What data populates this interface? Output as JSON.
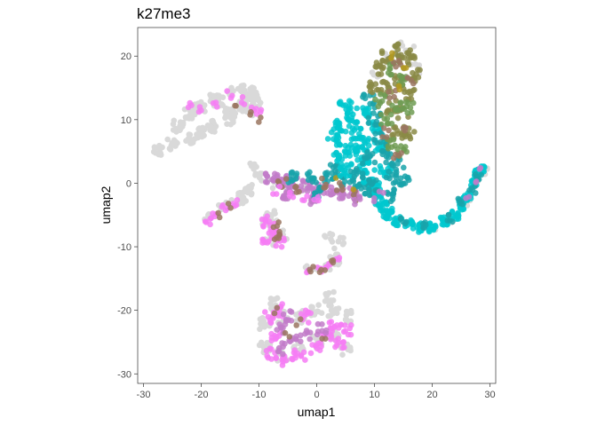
{
  "chart_data": {
    "type": "scatter",
    "title": "k27me3",
    "xlabel": "umap1",
    "ylabel": "umap2",
    "xlim": [
      -31,
      31
    ],
    "ylim": [
      -31.5,
      24.5
    ],
    "xticks": [
      -30,
      -20,
      -10,
      0,
      10,
      20,
      30
    ],
    "yticks": [
      -30,
      -20,
      -10,
      0,
      10,
      20
    ],
    "grid": false,
    "legend": "none",
    "colors": {
      "background": "#d9d9d9",
      "magenta": "#f67df4",
      "mauve": "#c27bc9",
      "brown": "#9a7560",
      "cyan": "#00c8cf",
      "teal": "#19a3aa",
      "olive": "#8a8a45",
      "green": "#6f9b52",
      "gold": "#b59a20"
    },
    "clusters": [
      {
        "name": "upper-left-arm",
        "layer": "bg",
        "pts": [
          [
            -27.5,
            5
          ],
          [
            -22,
            7
          ],
          [
            -18,
            9
          ],
          [
            -15,
            11
          ],
          [
            -13,
            12.5
          ],
          [
            -12,
            13.5
          ],
          [
            -10.5,
            13
          ],
          [
            -12,
            11.5
          ],
          [
            -15,
            10
          ],
          [
            -20,
            8
          ],
          [
            -25,
            6
          ],
          [
            -24,
            9
          ],
          [
            -22,
            11
          ],
          [
            -20,
            12
          ],
          [
            -17,
            13
          ]
        ],
        "spread": 0.9,
        "n": 14
      },
      {
        "name": "upper-left-thin",
        "layer": "bg",
        "pts": [
          [
            -21,
            12
          ],
          [
            -18,
            13.5
          ],
          [
            -15,
            14.5
          ],
          [
            -13,
            15
          ],
          [
            -11,
            14.5
          ]
        ],
        "spread": 0.6,
        "n": 10
      },
      {
        "name": "upper-left-magenta",
        "layer": "fg",
        "color": "magenta",
        "pts": [
          [
            -22,
            12.5
          ],
          [
            -20,
            11.5
          ],
          [
            -17.5,
            12.5
          ],
          [
            -15,
            14
          ],
          [
            -13,
            13
          ],
          [
            -11,
            12
          ],
          [
            -10,
            11
          ]
        ],
        "spread": 0.6,
        "n": 3
      },
      {
        "name": "upper-left-brown",
        "layer": "fg",
        "color": "brown",
        "pts": [
          [
            -14,
            12
          ],
          [
            -11.5,
            11
          ],
          [
            -10,
            10
          ]
        ],
        "spread": 0.4,
        "n": 2
      },
      {
        "name": "center-bg",
        "layer": "bg",
        "pts": [
          [
            -11,
            3
          ],
          [
            -10,
            1
          ],
          [
            -8,
            0
          ],
          [
            -5,
            0
          ],
          [
            -2,
            -0.5
          ],
          [
            1,
            -1
          ],
          [
            -12,
            -1
          ],
          [
            -13,
            -3
          ],
          [
            -8,
            -5
          ],
          [
            -6,
            -8
          ],
          [
            2,
            -8.5
          ],
          [
            4,
            -9
          ],
          [
            3,
            -11
          ]
        ],
        "spread": 0.8,
        "n": 6
      },
      {
        "name": "center-arm-mix",
        "layer": "fg",
        "color": "mauve",
        "pts": [
          [
            -8,
            1
          ],
          [
            -6,
            0.5
          ],
          [
            -4,
            0
          ],
          [
            -2,
            -0.5
          ],
          [
            0,
            -1
          ],
          [
            2,
            -1
          ],
          [
            4,
            -1.5
          ],
          [
            6,
            -1.5
          ],
          [
            -5,
            -2
          ],
          [
            -1,
            -2.5
          ]
        ],
        "spread": 0.9,
        "n": 12
      },
      {
        "name": "center-arm-teal",
        "layer": "fg",
        "color": "teal",
        "pts": [
          [
            -4,
            1
          ],
          [
            -1,
            1
          ],
          [
            2,
            1
          ],
          [
            5,
            0.5
          ],
          [
            7,
            0
          ],
          [
            9,
            -1
          ],
          [
            3,
            2
          ],
          [
            0,
            -1.5
          ]
        ],
        "spread": 0.9,
        "n": 10
      },
      {
        "name": "center-arm-brown",
        "layer": "fg",
        "color": "brown",
        "pts": [
          [
            -6,
            0
          ],
          [
            -3,
            -1
          ],
          [
            1,
            0
          ],
          [
            4,
            -0.5
          ],
          [
            7,
            -2
          ]
        ],
        "spread": 0.8,
        "n": 4
      },
      {
        "name": "center-arm-magenta",
        "layer": "fg",
        "color": "magenta",
        "pts": [
          [
            -7,
            -1
          ],
          [
            -4,
            -2
          ],
          [
            -2,
            -2.5
          ],
          [
            0,
            -2.8
          ]
        ],
        "spread": 0.7,
        "n": 3
      },
      {
        "name": "center-arm-gold",
        "layer": "fg",
        "color": "gold",
        "pts": [
          [
            6,
            -1
          ],
          [
            3,
            1
          ]
        ],
        "spread": 0.4,
        "n": 1
      },
      {
        "name": "left-small-bg",
        "layer": "bg",
        "pts": [
          [
            -19,
            -5
          ],
          [
            -17,
            -4
          ],
          [
            -15,
            -3
          ],
          [
            -13,
            -2
          ],
          [
            -12,
            -1
          ]
        ],
        "spread": 0.7,
        "n": 5
      },
      {
        "name": "left-small-magenta",
        "layer": "fg",
        "color": "magenta",
        "pts": [
          [
            -19,
            -6
          ],
          [
            -18,
            -5
          ],
          [
            -16,
            -4
          ],
          [
            -14,
            -3
          ]
        ],
        "spread": 0.6,
        "n": 4
      },
      {
        "name": "left-small-brown",
        "layer": "fg",
        "color": "brown",
        "pts": [
          [
            -17,
            -5
          ],
          [
            -15,
            -3.5
          ]
        ],
        "spread": 0.4,
        "n": 2
      },
      {
        "name": "mid-left-blob-bg",
        "layer": "bg",
        "pts": [
          [
            -9,
            -6
          ],
          [
            -7,
            -6
          ],
          [
            -6,
            -8
          ],
          [
            -8,
            -9
          ]
        ],
        "spread": 1,
        "n": 5
      },
      {
        "name": "mid-left-blob-magenta",
        "layer": "fg",
        "color": "magenta",
        "pts": [
          [
            -9,
            -6
          ],
          [
            -8,
            -7
          ],
          [
            -7,
            -8
          ],
          [
            -8.5,
            -9
          ],
          [
            -6.5,
            -9.5
          ]
        ],
        "spread": 0.9,
        "n": 7
      },
      {
        "name": "mid-left-blob-brown",
        "layer": "fg",
        "color": "brown",
        "pts": [
          [
            -7,
            -6.5
          ],
          [
            -6.5,
            -8
          ],
          [
            -7,
            -9
          ]
        ],
        "spread": 0.5,
        "n": 3
      },
      {
        "name": "mid-small-bg",
        "layer": "bg",
        "pts": [
          [
            -2,
            -13.5
          ],
          [
            0,
            -13
          ],
          [
            2,
            -13
          ],
          [
            3.5,
            -12.5
          ]
        ],
        "spread": 0.6,
        "n": 4
      },
      {
        "name": "mid-small-magenta",
        "layer": "fg",
        "color": "magenta",
        "pts": [
          [
            -1.5,
            -14
          ],
          [
            0.5,
            -13.5
          ],
          [
            2,
            -13
          ],
          [
            3.5,
            -12
          ]
        ],
        "spread": 0.5,
        "n": 4
      },
      {
        "name": "mid-small-brown",
        "layer": "fg",
        "color": "brown",
        "pts": [
          [
            -1,
            -13.5
          ],
          [
            1,
            -14
          ],
          [
            3,
            -12.5
          ]
        ],
        "spread": 0.5,
        "n": 3
      },
      {
        "name": "bottom-bg",
        "layer": "bg",
        "pts": [
          [
            -9,
            -22
          ],
          [
            -6,
            -21
          ],
          [
            -3,
            -21
          ],
          [
            0,
            -20
          ],
          [
            3,
            -20
          ],
          [
            5,
            -21
          ],
          [
            -9,
            -26
          ],
          [
            -6,
            -27
          ],
          [
            -3,
            -26
          ],
          [
            0,
            -25
          ],
          [
            3,
            -24
          ],
          [
            5,
            -26
          ],
          [
            -7,
            -19
          ],
          [
            2,
            -18
          ]
        ],
        "spread": 1,
        "n": 10
      },
      {
        "name": "bottom-magenta",
        "layer": "fg",
        "color": "magenta",
        "pts": [
          [
            -8,
            -21
          ],
          [
            -7,
            -24
          ],
          [
            -8,
            -27
          ],
          [
            -5,
            -28
          ],
          [
            -3,
            -27
          ],
          [
            0,
            -26
          ],
          [
            2,
            -24
          ],
          [
            3,
            -22
          ],
          [
            4,
            -25
          ],
          [
            5,
            -23
          ],
          [
            -2,
            -21
          ],
          [
            -6,
            -20
          ]
        ],
        "spread": 1,
        "n": 9
      },
      {
        "name": "bottom-mauve",
        "layer": "fg",
        "color": "mauve",
        "pts": [
          [
            -6,
            -23
          ],
          [
            -4,
            -25
          ],
          [
            -2,
            -24
          ],
          [
            -6,
            -26
          ],
          [
            1,
            -23
          ],
          [
            -5,
            -21
          ]
        ],
        "spread": 0.9,
        "n": 7
      },
      {
        "name": "bottom-brown",
        "layer": "fg",
        "color": "brown",
        "pts": [
          [
            -7,
            -20
          ],
          [
            -5,
            -24
          ],
          [
            -3,
            -22
          ],
          [
            1,
            -25
          ]
        ],
        "spread": 0.6,
        "n": 2
      },
      {
        "name": "right-tower-bg",
        "layer": "bg",
        "pts": [
          [
            10,
            17
          ],
          [
            12,
            20
          ],
          [
            14,
            21.5
          ],
          [
            16,
            21
          ],
          [
            17,
            18
          ]
        ],
        "spread": 0.9,
        "n": 5
      },
      {
        "name": "right-tower-cyan",
        "layer": "fg",
        "color": "cyan",
        "pts": [
          [
            5,
            12
          ],
          [
            6,
            10
          ],
          [
            7,
            8
          ],
          [
            8,
            6
          ],
          [
            8,
            3
          ],
          [
            9,
            1
          ],
          [
            10,
            -1
          ],
          [
            11,
            -3
          ],
          [
            12,
            -4
          ],
          [
            8,
            11
          ],
          [
            10,
            9
          ],
          [
            11,
            6
          ],
          [
            12,
            2
          ],
          [
            6,
            5
          ],
          [
            5,
            2
          ],
          [
            4,
            4
          ],
          [
            3,
            7
          ],
          [
            4,
            9
          ]
        ],
        "spread": 1.1,
        "n": 14
      },
      {
        "name": "right-tower-teal",
        "layer": "fg",
        "color": "teal",
        "pts": [
          [
            9,
            13
          ],
          [
            10,
            10
          ],
          [
            11,
            7
          ],
          [
            12,
            4
          ],
          [
            13,
            1
          ],
          [
            13,
            -2
          ],
          [
            9,
            4
          ],
          [
            7,
            2
          ],
          [
            10,
            0
          ],
          [
            14,
            3
          ],
          [
            15,
            0
          ]
        ],
        "spread": 1.1,
        "n": 10
      },
      {
        "name": "right-tower-olive",
        "layer": "fg",
        "color": "olive",
        "pts": [
          [
            11,
            18
          ],
          [
            12,
            20
          ],
          [
            14,
            21
          ],
          [
            16,
            20
          ],
          [
            17,
            17
          ],
          [
            16,
            14
          ],
          [
            15,
            11
          ],
          [
            14,
            8
          ],
          [
            13,
            12
          ],
          [
            12,
            15
          ],
          [
            14,
            16
          ],
          [
            15,
            19
          ],
          [
            10,
            15
          ],
          [
            16,
            8
          ]
        ],
        "spread": 1,
        "n": 10
      },
      {
        "name": "right-tower-green",
        "layer": "fg",
        "color": "green",
        "pts": [
          [
            13,
            18
          ],
          [
            15,
            16
          ],
          [
            14,
            12
          ],
          [
            12,
            10
          ],
          [
            16,
            12
          ],
          [
            13,
            6
          ],
          [
            11,
            13
          ],
          [
            15,
            5
          ]
        ],
        "spread": 1,
        "n": 8
      },
      {
        "name": "right-tower-brown",
        "layer": "fg",
        "color": "brown",
        "pts": [
          [
            14,
            19
          ],
          [
            16,
            16
          ],
          [
            13,
            14
          ],
          [
            15,
            9
          ],
          [
            12,
            8
          ],
          [
            14,
            4
          ]
        ],
        "spread": 0.8,
        "n": 4
      },
      {
        "name": "right-tower-mauve",
        "layer": "fg",
        "color": "mauve",
        "pts": [
          [
            8,
            -2
          ],
          [
            10,
            -3
          ],
          [
            11,
            -1
          ],
          [
            7,
            -3
          ]
        ],
        "spread": 0.7,
        "n": 2
      },
      {
        "name": "right-tower-gold",
        "layer": "fg",
        "color": "gold",
        "pts": [
          [
            13,
            20
          ],
          [
            15,
            18
          ],
          [
            14,
            15
          ]
        ],
        "spread": 0.5,
        "n": 2
      },
      {
        "name": "right-arm-bg",
        "layer": "bg",
        "pts": [
          [
            20,
            -7
          ],
          [
            23,
            -6
          ],
          [
            26,
            -3
          ],
          [
            28,
            0
          ],
          [
            29,
            2
          ]
        ],
        "spread": 0.6,
        "n": 4
      },
      {
        "name": "right-arm-cyan",
        "layer": "fg",
        "color": "cyan",
        "pts": [
          [
            12,
            -5
          ],
          [
            14,
            -6
          ],
          [
            16,
            -6.5
          ],
          [
            18,
            -7
          ],
          [
            20,
            -7
          ],
          [
            22,
            -6
          ],
          [
            24,
            -5
          ],
          [
            25,
            -3.5
          ],
          [
            26,
            -2
          ],
          [
            27,
            0
          ],
          [
            28,
            1.5
          ],
          [
            28.5,
            2
          ]
        ],
        "spread": 0.7,
        "n": 12
      },
      {
        "name": "right-arm-teal",
        "layer": "fg",
        "color": "teal",
        "pts": [
          [
            15,
            -6
          ],
          [
            19,
            -6.5
          ],
          [
            23,
            -5.5
          ],
          [
            25,
            -3
          ],
          [
            27,
            -1
          ],
          [
            28,
            1
          ]
        ],
        "spread": 0.6,
        "n": 5
      },
      {
        "name": "right-arm-mauve",
        "layer": "fg",
        "color": "mauve",
        "pts": [
          [
            26,
            -2.5
          ],
          [
            27.5,
            0.5
          ],
          [
            28.5,
            2.5
          ]
        ],
        "spread": 0.4,
        "n": 2
      }
    ]
  }
}
